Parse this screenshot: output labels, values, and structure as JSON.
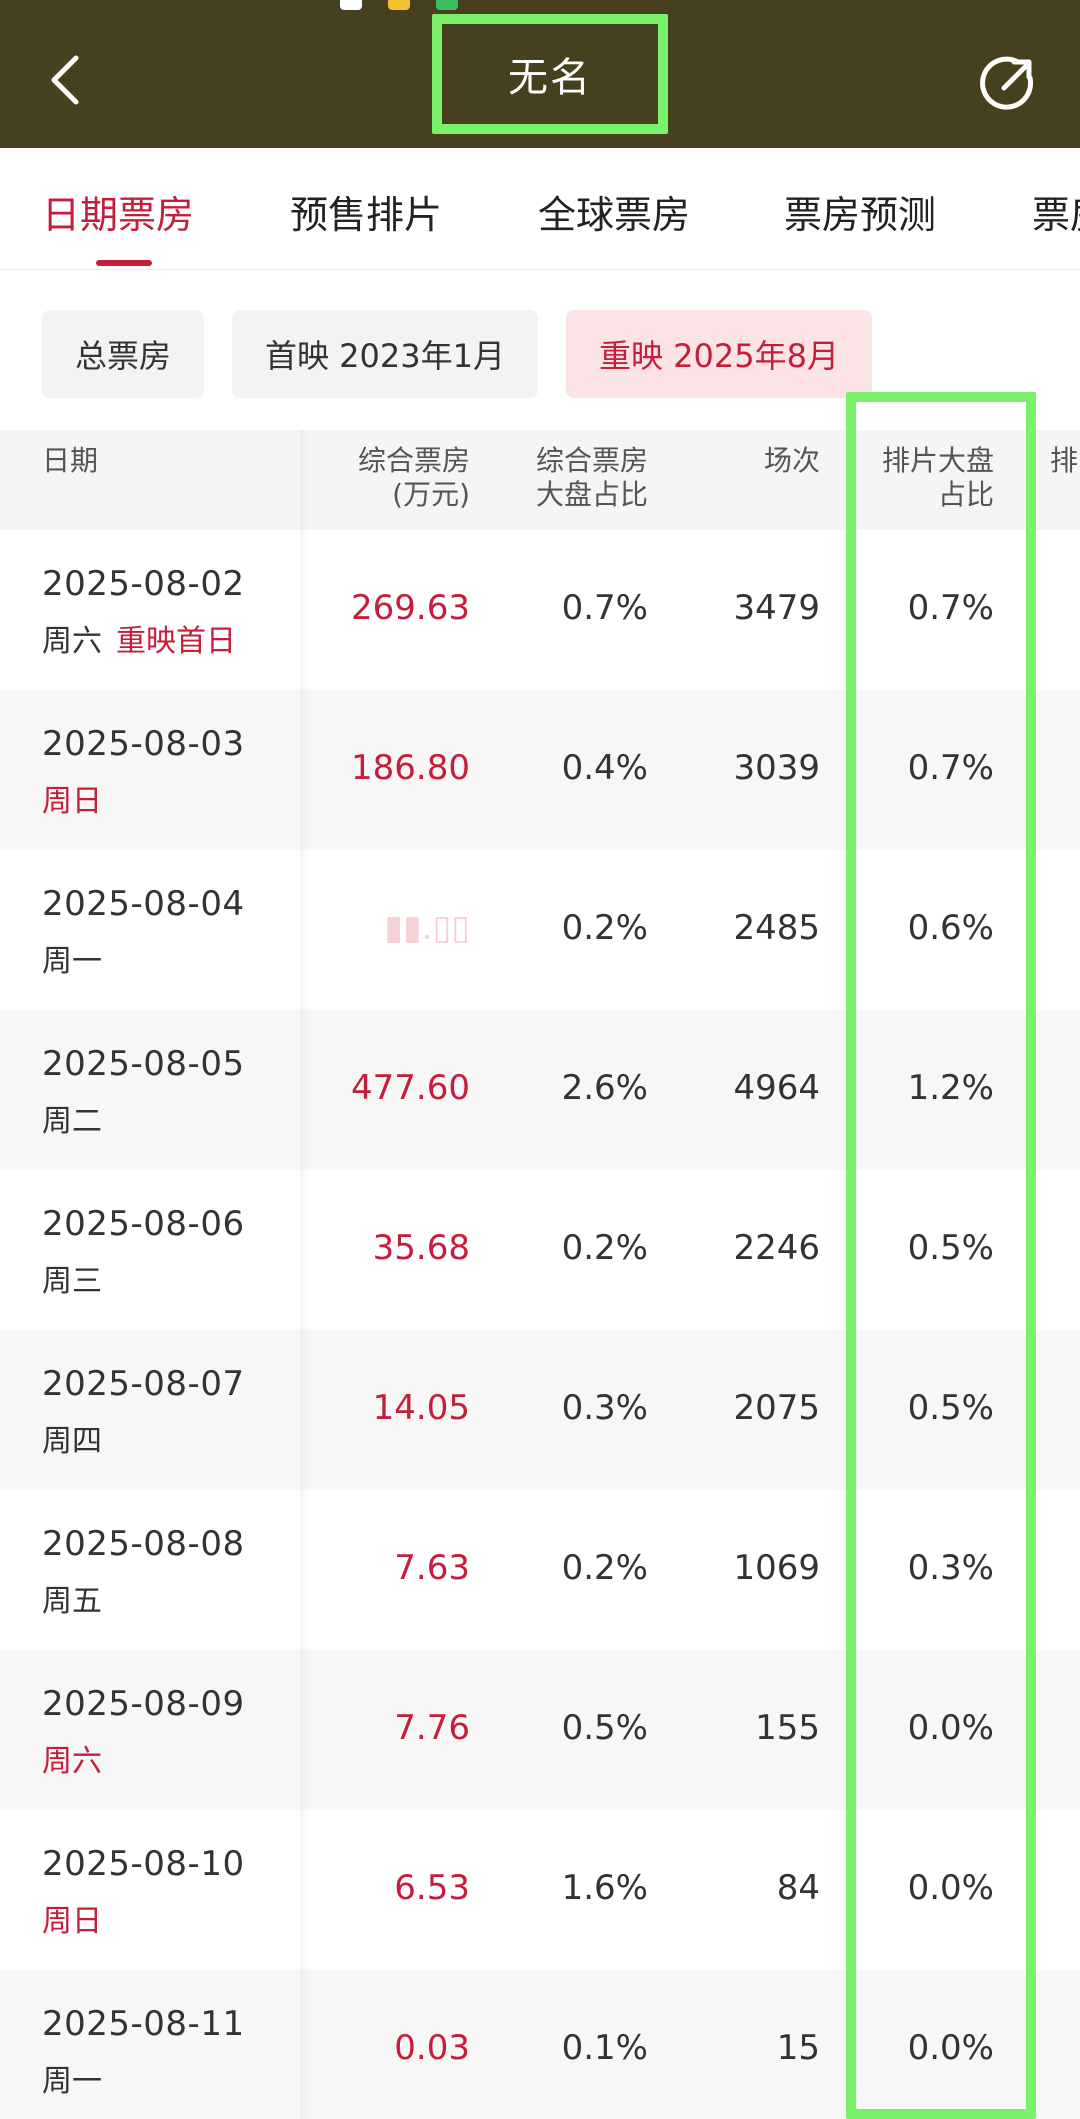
{
  "header": {
    "title": "无名"
  },
  "tabs": [
    {
      "label": "日期票房",
      "active": true
    },
    {
      "label": "预售排片",
      "active": false
    },
    {
      "label": "全球票房",
      "active": false
    },
    {
      "label": "票房预测",
      "active": false
    },
    {
      "label": "票房",
      "active": false
    }
  ],
  "filters": [
    {
      "label": "总票房",
      "active": false
    },
    {
      "label": "首映 2023年1月",
      "active": false
    },
    {
      "label": "重映 2025年8月",
      "active": true
    }
  ],
  "table": {
    "headers": {
      "date": "日期",
      "box": "综合票房",
      "box_unit": "(万元)",
      "box_share_1": "综合票房",
      "box_share_2": "大盘占比",
      "shows": "场次",
      "show_share_1": "排片大盘",
      "show_share_2": "占比",
      "more": "排"
    },
    "rows": [
      {
        "date": "2025-08-02",
        "weekday": "周六",
        "tag": "重映首日",
        "weekday_red": false,
        "box": "269.63",
        "box_share": "0.7%",
        "shows": "3479",
        "show_share": "0.7%"
      },
      {
        "date": "2025-08-03",
        "weekday": "周日",
        "tag": "",
        "weekday_red": true,
        "box": "186.80",
        "box_share": "0.4%",
        "shows": "3039",
        "show_share": "0.7%"
      },
      {
        "date": "2025-08-04",
        "weekday": "周一",
        "tag": "",
        "weekday_red": false,
        "box": "",
        "box_share": "0.2%",
        "shows": "2485",
        "show_share": "0.6%"
      },
      {
        "date": "2025-08-05",
        "weekday": "周二",
        "tag": "",
        "weekday_red": false,
        "box": "477.60",
        "box_share": "2.6%",
        "shows": "4964",
        "show_share": "1.2%"
      },
      {
        "date": "2025-08-06",
        "weekday": "周三",
        "tag": "",
        "weekday_red": false,
        "box": "35.68",
        "box_share": "0.2%",
        "shows": "2246",
        "show_share": "0.5%"
      },
      {
        "date": "2025-08-07",
        "weekday": "周四",
        "tag": "",
        "weekday_red": false,
        "box": "14.05",
        "box_share": "0.3%",
        "shows": "2075",
        "show_share": "0.5%"
      },
      {
        "date": "2025-08-08",
        "weekday": "周五",
        "tag": "",
        "weekday_red": false,
        "box": "7.63",
        "box_share": "0.2%",
        "shows": "1069",
        "show_share": "0.3%"
      },
      {
        "date": "2025-08-09",
        "weekday": "周六",
        "tag": "",
        "weekday_red": true,
        "box": "7.76",
        "box_share": "0.5%",
        "shows": "155",
        "show_share": "0.0%"
      },
      {
        "date": "2025-08-10",
        "weekday": "周日",
        "tag": "",
        "weekday_red": true,
        "box": "6.53",
        "box_share": "1.6%",
        "shows": "84",
        "show_share": "0.0%"
      },
      {
        "date": "2025-08-11",
        "weekday": "周一",
        "tag": "",
        "weekday_red": false,
        "box": "0.03",
        "box_share": "0.1%",
        "shows": "15",
        "show_share": "0.0%"
      }
    ]
  },
  "colors": {
    "topbar": "#46401f",
    "accent": "#c41e3a",
    "highlight": "#7af16a"
  },
  "icons": {
    "back": "back-arrow-icon",
    "share": "share-icon"
  }
}
